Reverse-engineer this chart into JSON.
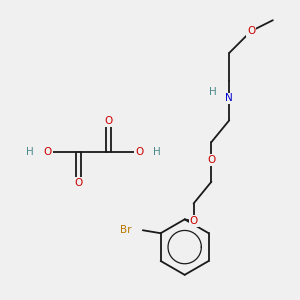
{
  "bg_color": "#f0f0f0",
  "bond_color": "#1a1a1a",
  "bond_width": 1.3,
  "atom_colors": {
    "O": "#cc0000",
    "N": "#0000cc",
    "H": "#4a8a8a",
    "Br": "#b87800"
  },
  "figsize": [
    3.0,
    3.0
  ],
  "dpi": 100
}
